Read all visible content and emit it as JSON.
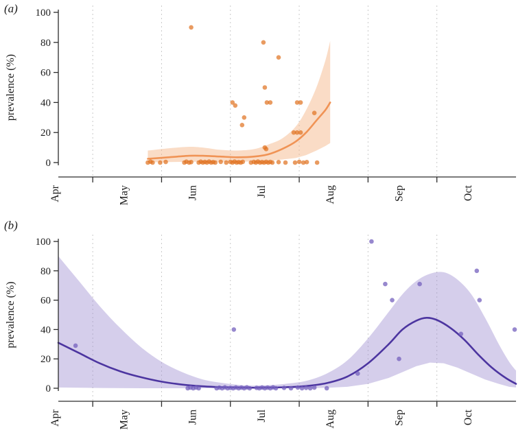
{
  "figure": {
    "background": "#ffffff",
    "text_color": "#1c1c1c",
    "axis_color": "#2b2b2b",
    "grid_color": "#c9c9c9"
  },
  "chart_data": [
    {
      "id": "a",
      "type": "scatter",
      "panel_label": "(a)",
      "ylabel": "prevalence (%)",
      "xlabel": "",
      "x_unit": "months_since_april",
      "x_tick_labels": [
        "Apr",
        "May",
        "Jun",
        "Jul",
        "Aug",
        "Sep",
        "Oct"
      ],
      "y_ticks": [
        0,
        20,
        40,
        60,
        80,
        100
      ],
      "ylim": [
        0,
        100
      ],
      "xlim": [
        0,
        6.65
      ],
      "grid": true,
      "colors": {
        "point": "#e0701e",
        "line": "#f09355",
        "band": "#f5b280"
      },
      "point_opacity": 0.7,
      "band_opacity": 0.45,
      "points": [
        [
          1.3,
          0
        ],
        [
          1.34,
          0.6
        ],
        [
          1.37,
          0
        ],
        [
          1.48,
          0
        ],
        [
          1.56,
          0.4
        ],
        [
          1.83,
          0
        ],
        [
          1.86,
          0.6
        ],
        [
          1.9,
          0
        ],
        [
          1.93,
          0.3
        ],
        [
          2.04,
          0
        ],
        [
          2.07,
          0.6
        ],
        [
          2.1,
          0
        ],
        [
          2.13,
          0.4
        ],
        [
          2.16,
          0
        ],
        [
          2.19,
          0.7
        ],
        [
          2.22,
          0
        ],
        [
          2.25,
          0.3
        ],
        [
          2.28,
          0
        ],
        [
          2.36,
          0.5
        ],
        [
          2.44,
          0
        ],
        [
          2.5,
          0.4
        ],
        [
          2.53,
          0
        ],
        [
          2.56,
          0.7
        ],
        [
          2.59,
          0
        ],
        [
          2.62,
          0.3
        ],
        [
          2.65,
          0
        ],
        [
          2.68,
          0.5
        ],
        [
          2.8,
          0
        ],
        [
          2.84,
          0.4
        ],
        [
          2.87,
          0
        ],
        [
          2.9,
          0.7
        ],
        [
          2.93,
          0
        ],
        [
          2.96,
          0.3
        ],
        [
          2.99,
          0
        ],
        [
          3.02,
          0.5
        ],
        [
          3.05,
          0
        ],
        [
          3.08,
          0.4
        ],
        [
          3.11,
          0
        ],
        [
          3.2,
          0.3
        ],
        [
          3.3,
          0
        ],
        [
          3.44,
          0
        ],
        [
          3.5,
          0.5
        ],
        [
          3.56,
          0
        ],
        [
          3.61,
          0.3
        ],
        [
          3.76,
          0
        ],
        [
          1.93,
          90
        ],
        [
          2.53,
          40
        ],
        [
          2.57,
          38
        ],
        [
          2.67,
          25
        ],
        [
          2.7,
          30
        ],
        [
          2.98,
          80
        ],
        [
          3.0,
          50
        ],
        [
          3.0,
          10
        ],
        [
          3.02,
          9
        ],
        [
          3.03,
          40
        ],
        [
          3.08,
          40
        ],
        [
          3.2,
          70
        ],
        [
          3.42,
          20
        ],
        [
          3.47,
          20
        ],
        [
          3.52,
          20
        ],
        [
          3.47,
          40
        ],
        [
          3.52,
          40
        ],
        [
          3.72,
          33
        ]
      ],
      "fit_line": [
        [
          1.3,
          2.5
        ],
        [
          1.6,
          3.5
        ],
        [
          1.9,
          4.5
        ],
        [
          2.1,
          4.5
        ],
        [
          2.35,
          4.0
        ],
        [
          2.6,
          3.5
        ],
        [
          2.85,
          4.0
        ],
        [
          3.05,
          5.5
        ],
        [
          3.25,
          9.0
        ],
        [
          3.45,
          14.0
        ],
        [
          3.6,
          20.0
        ],
        [
          3.75,
          28.0
        ],
        [
          3.88,
          35.0
        ],
        [
          3.95,
          40.0
        ]
      ],
      "band_upper": [
        [
          1.3,
          8.0
        ],
        [
          1.6,
          9.5
        ],
        [
          1.9,
          10.5
        ],
        [
          2.1,
          10.0
        ],
        [
          2.35,
          8.5
        ],
        [
          2.6,
          8.0
        ],
        [
          2.85,
          9.0
        ],
        [
          3.05,
          12.0
        ],
        [
          3.25,
          16.0
        ],
        [
          3.45,
          24.0
        ],
        [
          3.6,
          35.0
        ],
        [
          3.75,
          50.0
        ],
        [
          3.88,
          68.0
        ],
        [
          3.95,
          81.0
        ]
      ],
      "band_lower": [
        [
          1.3,
          0.2
        ],
        [
          1.9,
          0.5
        ],
        [
          2.6,
          0.5
        ],
        [
          3.05,
          1.0
        ],
        [
          3.45,
          3.0
        ],
        [
          3.6,
          5.0
        ],
        [
          3.75,
          8.0
        ],
        [
          3.88,
          11.0
        ],
        [
          3.95,
          13.0
        ]
      ]
    },
    {
      "id": "b",
      "type": "scatter",
      "panel_label": "(b)",
      "ylabel": "prevalence (%)",
      "xlabel": "",
      "x_unit": "months_since_april",
      "x_tick_labels": [
        "Apr",
        "May",
        "Jun",
        "Jul",
        "Aug",
        "Sep",
        "Oct"
      ],
      "y_ticks": [
        0,
        20,
        40,
        60,
        80,
        100
      ],
      "ylim": [
        0,
        100
      ],
      "xlim": [
        0,
        6.65
      ],
      "grid": true,
      "colors": {
        "point": "#7460bd",
        "line": "#4c35a0",
        "band": "#9b8bd0"
      },
      "point_opacity": 0.75,
      "band_opacity": 0.42,
      "points": [
        [
          1.88,
          0
        ],
        [
          1.92,
          0.4
        ],
        [
          1.96,
          0
        ],
        [
          2.0,
          0.5
        ],
        [
          2.04,
          0
        ],
        [
          2.3,
          0
        ],
        [
          2.34,
          0.4
        ],
        [
          2.38,
          0
        ],
        [
          2.42,
          0.6
        ],
        [
          2.46,
          0
        ],
        [
          2.5,
          0.3
        ],
        [
          2.54,
          0
        ],
        [
          2.58,
          0.5
        ],
        [
          2.62,
          0
        ],
        [
          2.66,
          0.4
        ],
        [
          2.7,
          0
        ],
        [
          2.74,
          0.6
        ],
        [
          2.78,
          0
        ],
        [
          2.88,
          0.3
        ],
        [
          2.92,
          0
        ],
        [
          2.96,
          0.5
        ],
        [
          3.0,
          0
        ],
        [
          3.04,
          0.4
        ],
        [
          3.08,
          0
        ],
        [
          3.12,
          0.6
        ],
        [
          3.16,
          0
        ],
        [
          3.28,
          0.3
        ],
        [
          3.38,
          0
        ],
        [
          3.48,
          0.5
        ],
        [
          3.54,
          0
        ],
        [
          3.6,
          0.3
        ],
        [
          3.66,
          0
        ],
        [
          3.72,
          0.4
        ],
        [
          3.9,
          0
        ],
        [
          0.25,
          29
        ],
        [
          2.55,
          40
        ],
        [
          4.35,
          10
        ],
        [
          4.55,
          100
        ],
        [
          4.75,
          71
        ],
        [
          4.85,
          60
        ],
        [
          4.95,
          20
        ],
        [
          5.25,
          71
        ],
        [
          5.85,
          37
        ],
        [
          6.08,
          80
        ],
        [
          6.12,
          60
        ],
        [
          6.63,
          40
        ]
      ],
      "fit_line": [
        [
          0.0,
          31
        ],
        [
          0.3,
          24
        ],
        [
          0.6,
          17
        ],
        [
          0.9,
          11.5
        ],
        [
          1.2,
          7.5
        ],
        [
          1.5,
          4.5
        ],
        [
          1.8,
          2.5
        ],
        [
          2.1,
          1.3
        ],
        [
          2.4,
          0.7
        ],
        [
          2.7,
          0.4
        ],
        [
          3.0,
          0.4
        ],
        [
          3.3,
          0.7
        ],
        [
          3.6,
          1.5
        ],
        [
          3.9,
          3.5
        ],
        [
          4.2,
          8.0
        ],
        [
          4.5,
          17.0
        ],
        [
          4.8,
          30.0
        ],
        [
          5.0,
          40.0
        ],
        [
          5.2,
          46.0
        ],
        [
          5.35,
          48.0
        ],
        [
          5.5,
          46.5
        ],
        [
          5.7,
          41.0
        ],
        [
          5.9,
          33.0
        ],
        [
          6.1,
          23.0
        ],
        [
          6.3,
          14.0
        ],
        [
          6.5,
          7.0
        ],
        [
          6.65,
          3.0
        ]
      ],
      "band_upper": [
        [
          0.0,
          90
        ],
        [
          0.3,
          73
        ],
        [
          0.6,
          56
        ],
        [
          0.9,
          41
        ],
        [
          1.2,
          28
        ],
        [
          1.5,
          18
        ],
        [
          1.8,
          11
        ],
        [
          2.1,
          6
        ],
        [
          2.4,
          3.5
        ],
        [
          2.7,
          2
        ],
        [
          3.0,
          2
        ],
        [
          3.3,
          3
        ],
        [
          3.6,
          5
        ],
        [
          3.9,
          10
        ],
        [
          4.2,
          19
        ],
        [
          4.5,
          34
        ],
        [
          4.8,
          52
        ],
        [
          5.0,
          64
        ],
        [
          5.2,
          73
        ],
        [
          5.4,
          78
        ],
        [
          5.6,
          79
        ],
        [
          5.8,
          74
        ],
        [
          6.0,
          64
        ],
        [
          6.2,
          48
        ],
        [
          6.4,
          30
        ],
        [
          6.55,
          18
        ],
        [
          6.65,
          12
        ]
      ],
      "band_lower": [
        [
          0.0,
          0.5
        ],
        [
          0.6,
          0.2
        ],
        [
          1.2,
          0
        ],
        [
          1.8,
          0
        ],
        [
          2.4,
          0
        ],
        [
          3.0,
          0
        ],
        [
          3.6,
          0
        ],
        [
          3.9,
          0.3
        ],
        [
          4.2,
          1
        ],
        [
          4.5,
          3
        ],
        [
          4.8,
          7
        ],
        [
          5.0,
          11
        ],
        [
          5.2,
          15
        ],
        [
          5.4,
          17.5
        ],
        [
          5.6,
          17
        ],
        [
          5.8,
          14
        ],
        [
          6.0,
          10
        ],
        [
          6.2,
          6
        ],
        [
          6.4,
          3
        ],
        [
          6.55,
          1
        ],
        [
          6.65,
          0.5
        ]
      ]
    }
  ]
}
